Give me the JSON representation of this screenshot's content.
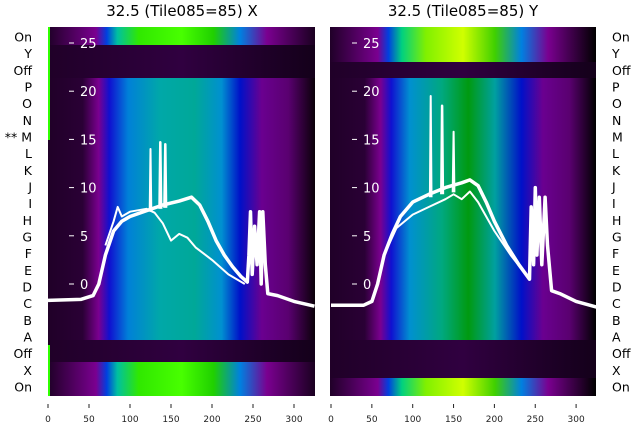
{
  "chart_data": [
    {
      "type": "heatmap",
      "title": "32.5 (Tile085=85) X",
      "xlim": [
        0,
        325
      ],
      "xticks": [
        "0",
        "50",
        "100",
        "150",
        "200",
        "250",
        "300"
      ],
      "ylim": [
        -3,
        26
      ],
      "yticks": [
        "0",
        "5",
        "10",
        "15",
        "20",
        "25"
      ],
      "row_labels": [
        "On",
        "Y",
        "Off",
        "P",
        "O",
        "N",
        "** M",
        "L",
        "K",
        "J",
        "I",
        "H",
        "G",
        "F",
        "E",
        "D",
        "C",
        "B",
        "A",
        "Off",
        "X",
        "On"
      ],
      "band_color": "#44ff00",
      "series": [
        {
          "name": "main",
          "width": 3.5,
          "points": [
            [
              0,
              -1.7
            ],
            [
              40,
              -1.6
            ],
            [
              55,
              -1.2
            ],
            [
              62,
              0
            ],
            [
              70,
              3
            ],
            [
              80,
              5.5
            ],
            [
              90,
              6.5
            ],
            [
              100,
              7
            ],
            [
              120,
              7.6
            ],
            [
              140,
              8.2
            ],
            [
              160,
              8.6
            ],
            [
              175,
              9
            ],
            [
              185,
              8.2
            ],
            [
              195,
              6.5
            ],
            [
              205,
              4.5
            ],
            [
              215,
              3
            ],
            [
              225,
              1.8
            ],
            [
              235,
              0.8
            ],
            [
              243,
              0.2
            ],
            [
              245,
              3
            ],
            [
              247,
              7.5
            ],
            [
              249,
              1
            ],
            [
              252,
              6
            ],
            [
              255,
              2
            ],
            [
              258,
              7.5
            ],
            [
              260,
              0
            ],
            [
              262,
              7.5
            ],
            [
              265,
              2
            ],
            [
              268,
              -1
            ],
            [
              280,
              -1.2
            ],
            [
              300,
              -1.8
            ],
            [
              325,
              -2.3
            ]
          ]
        },
        {
          "name": "secondary",
          "width": 2,
          "points": [
            [
              70,
              4
            ],
            [
              80,
              6.5
            ],
            [
              85,
              8
            ],
            [
              90,
              7
            ],
            [
              100,
              7.5
            ],
            [
              120,
              7.8
            ],
            [
              130,
              7.4
            ],
            [
              140,
              6.3
            ],
            [
              150,
              4.5
            ],
            [
              160,
              5.2
            ],
            [
              170,
              4.8
            ],
            [
              180,
              3.8
            ],
            [
              200,
              2.5
            ],
            [
              220,
              1
            ],
            [
              240,
              0
            ]
          ]
        },
        {
          "name": "spike-1",
          "width": 2,
          "points": [
            [
              124,
              7.5
            ],
            [
              125,
              14
            ],
            [
              126,
              7.5
            ]
          ]
        },
        {
          "name": "spike-2",
          "width": 2.5,
          "points": [
            [
              136,
              7.8
            ],
            [
              137,
              14.7
            ],
            [
              138,
              7.8
            ]
          ]
        },
        {
          "name": "spike-3",
          "width": 2.5,
          "points": [
            [
              142,
              7.9
            ],
            [
              143,
              14.5
            ],
            [
              144,
              7.9
            ]
          ]
        }
      ]
    },
    {
      "type": "heatmap",
      "title": "32.5 (Tile085=85) Y",
      "xlim": [
        0,
        325
      ],
      "xticks": [
        "0",
        "50",
        "100",
        "150",
        "200",
        "250",
        "300"
      ],
      "ylim": [
        -3,
        26
      ],
      "yticks": [
        "0",
        "5",
        "10",
        "15",
        "20",
        "25"
      ],
      "row_labels": [
        "On",
        "Y",
        "Off",
        "P",
        "O",
        "N",
        "M",
        "L",
        "K",
        "J",
        "I",
        "H",
        "G",
        "F",
        "E",
        "D",
        "C",
        "B",
        "A",
        "Off",
        "X",
        "On"
      ],
      "band_color": "#ccff00",
      "series": [
        {
          "name": "main",
          "width": 3.5,
          "points": [
            [
              0,
              -2.2
            ],
            [
              40,
              -2.2
            ],
            [
              50,
              -1.8
            ],
            [
              57,
              0
            ],
            [
              65,
              3
            ],
            [
              75,
              5.2
            ],
            [
              85,
              7
            ],
            [
              100,
              8.5
            ],
            [
              120,
              9.3
            ],
            [
              140,
              10
            ],
            [
              160,
              10.5
            ],
            [
              170,
              10.8
            ],
            [
              180,
              10.2
            ],
            [
              190,
              8.5
            ],
            [
              200,
              6.5
            ],
            [
              215,
              4
            ],
            [
              230,
              2
            ],
            [
              243,
              0.5
            ],
            [
              245,
              8
            ],
            [
              248,
              2
            ],
            [
              250,
              10
            ],
            [
              252,
              3
            ],
            [
              255,
              9
            ],
            [
              258,
              2
            ],
            [
              262,
              9
            ],
            [
              265,
              4
            ],
            [
              270,
              -0.7
            ],
            [
              280,
              -1
            ],
            [
              300,
              -1.8
            ],
            [
              325,
              -2.4
            ]
          ]
        },
        {
          "name": "secondary",
          "width": 2,
          "points": [
            [
              65,
              3
            ],
            [
              80,
              5.8
            ],
            [
              100,
              7.2
            ],
            [
              120,
              8
            ],
            [
              140,
              8.8
            ],
            [
              150,
              9.3
            ],
            [
              160,
              8.8
            ],
            [
              170,
              9.6
            ],
            [
              180,
              8.5
            ],
            [
              190,
              7
            ],
            [
              200,
              5.5
            ],
            [
              220,
              3
            ],
            [
              243,
              0.5
            ]
          ]
        },
        {
          "name": "spike-1",
          "width": 2,
          "points": [
            [
              121,
              9
            ],
            [
              122,
              19.5
            ],
            [
              123,
              9
            ]
          ]
        },
        {
          "name": "spike-2",
          "width": 2.5,
          "points": [
            [
              135,
              9.3
            ],
            [
              136,
              18.5
            ],
            [
              137,
              9.3
            ]
          ]
        },
        {
          "name": "spike-3",
          "width": 2,
          "points": [
            [
              149,
              9.5
            ],
            [
              150,
              15.8
            ],
            [
              151,
              9.5
            ]
          ]
        }
      ]
    }
  ]
}
